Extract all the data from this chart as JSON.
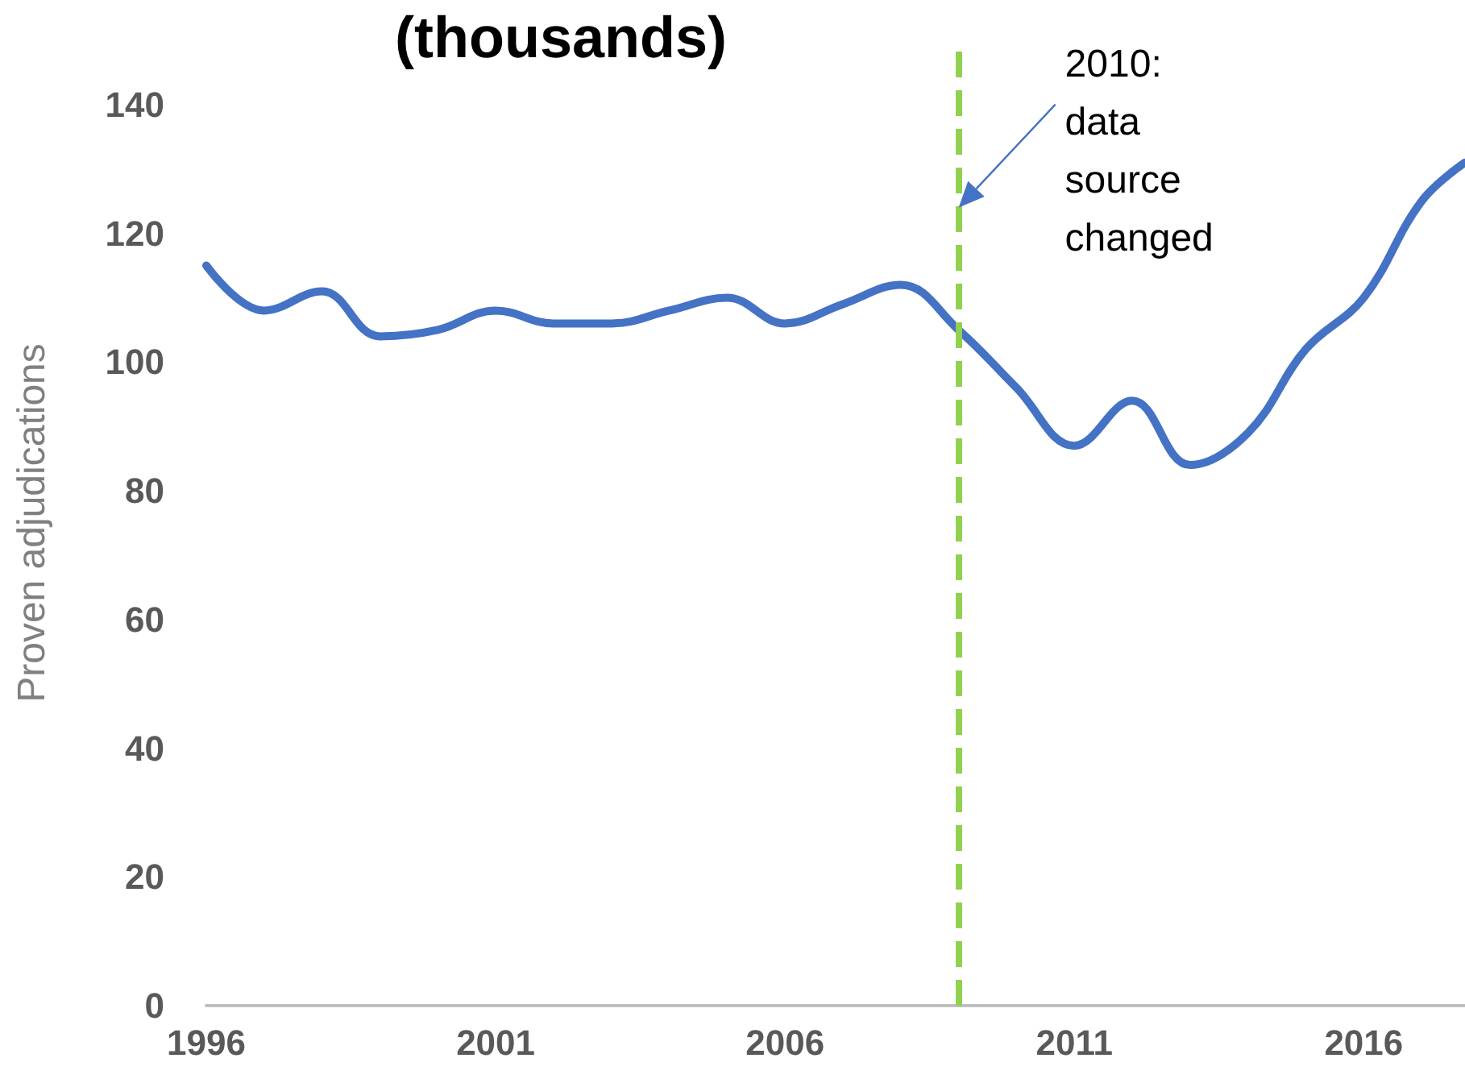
{
  "chart_data": {
    "type": "line",
    "title": "(thousands)",
    "ylabel": "Proven adjudications",
    "x": [
      1996,
      1997,
      1998,
      1999,
      2000,
      2001,
      2002,
      2003,
      2004,
      2005,
      2006,
      2007,
      2008,
      2009,
      2010,
      2011,
      2012,
      2013,
      2014,
      2015,
      2016,
      2017,
      2017.75
    ],
    "series": [
      {
        "color": "#4472c4",
        "values": [
          115,
          108,
          111,
          104,
          105,
          108,
          106,
          106,
          108,
          110,
          106,
          109,
          112,
          105,
          96,
          87,
          94,
          84,
          89,
          102,
          110,
          125,
          131
        ]
      }
    ],
    "xlim": [
      1996,
      2017.75
    ],
    "xticks": [
      1996,
      2001,
      2006,
      2011,
      2016
    ],
    "ylim": [
      0,
      150
    ],
    "yticks": [
      0,
      20,
      40,
      60,
      80,
      100,
      120,
      140
    ],
    "ref_lines": [
      {
        "axis": "x",
        "value": 2009,
        "color": "#92d050",
        "line_style": "dashed"
      }
    ],
    "annotations": [
      {
        "text": "2010:\ndata\nsource\nchanged",
        "x": 2009,
        "y": 124
      }
    ],
    "grid": false,
    "marker": "none",
    "line_style": "solid"
  }
}
